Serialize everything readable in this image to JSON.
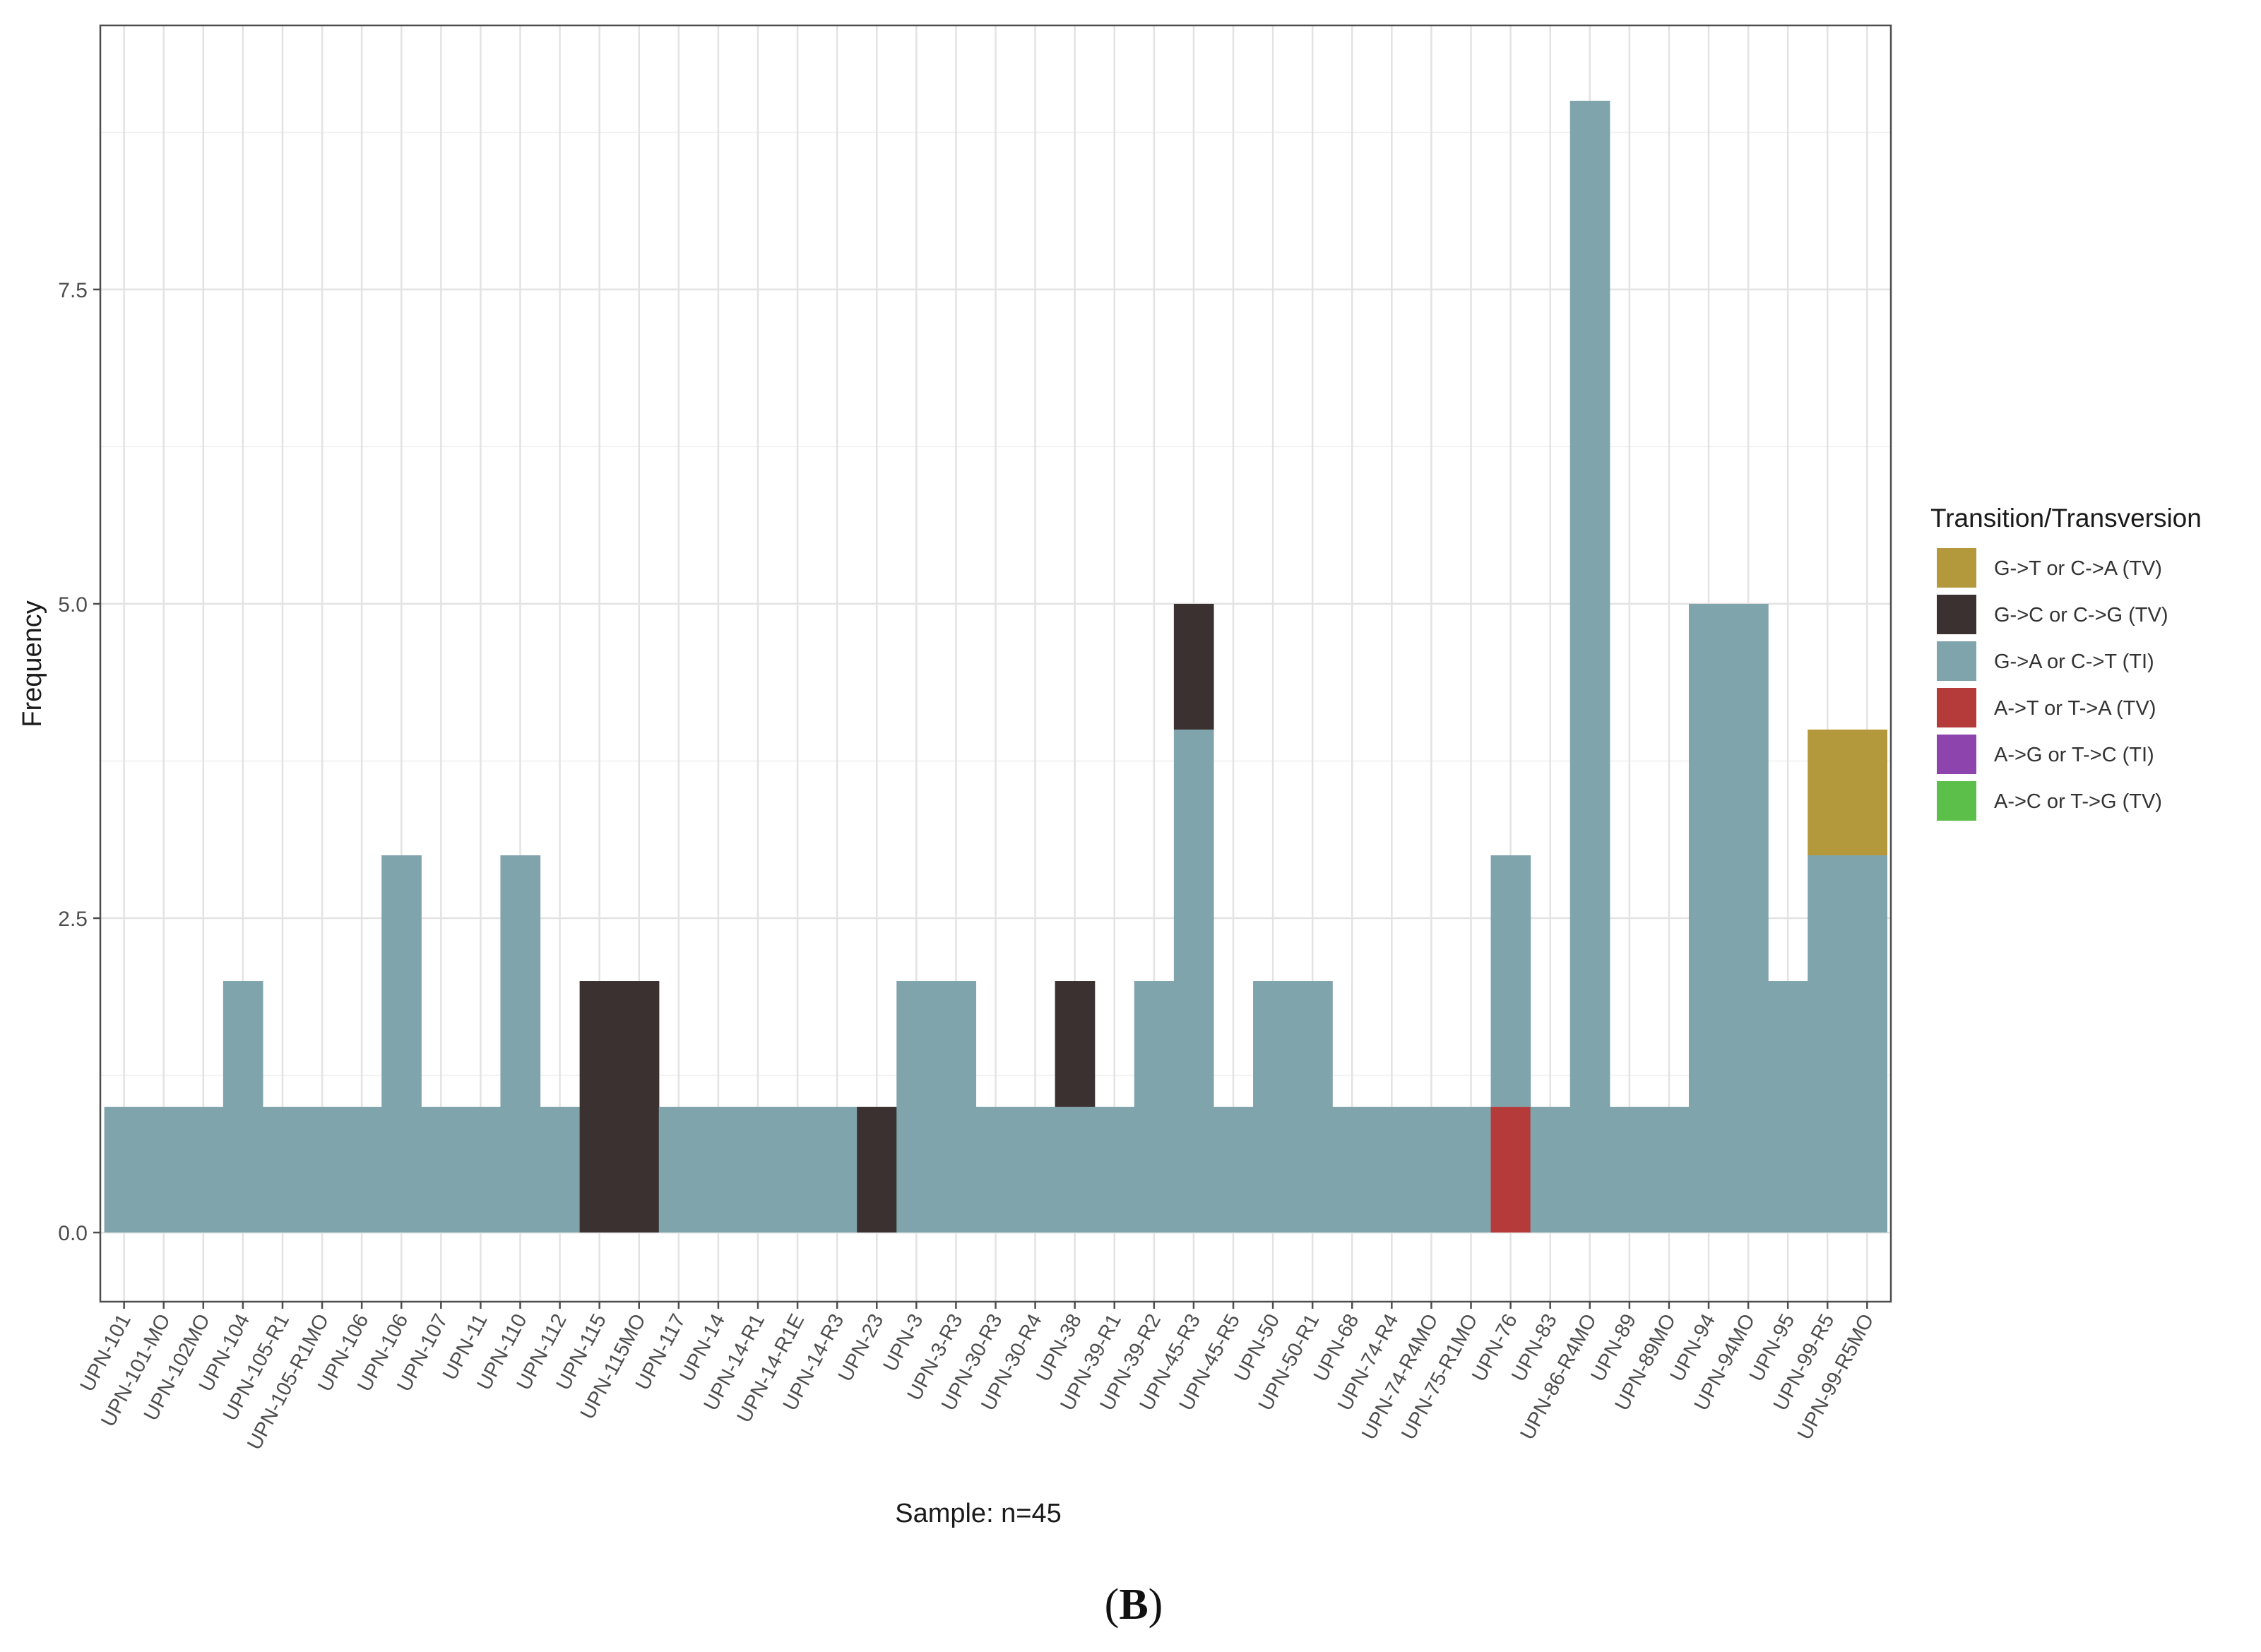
{
  "panel_label": {
    "open": "(",
    "letter": "B",
    "close": ")"
  },
  "chart_data": {
    "type": "bar",
    "stacked": true,
    "xlabel": "Sample: n=45",
    "ylabel": "Frequency",
    "ylim": [
      -0.55,
      9.6
    ],
    "yticks": [
      0.0,
      2.5,
      5.0,
      7.5
    ],
    "ytick_labels": [
      "0.0",
      "2.5",
      "5.0",
      "7.5"
    ],
    "grid": true,
    "legend_position": "right",
    "legend_title": "Transition/Transversion",
    "categories": [
      "UPN-101",
      "UPN-101-MO",
      "UPN-102MO",
      "UPN-104",
      "UPN-105-R1",
      "UPN-105-R1MO",
      "UPN-106",
      "UPN-106",
      "UPN-107",
      "UPN-11",
      "UPN-110",
      "UPN-112",
      "UPN-115",
      "UPN-115MO",
      "UPN-117",
      "UPN-14",
      "UPN-14-R1",
      "UPN-14-R1E",
      "UPN-14-R3",
      "UPN-23",
      "UPN-3",
      "UPN-3-R3",
      "UPN-30-R3",
      "UPN-30-R4",
      "UPN-38",
      "UPN-39-R1",
      "UPN-39-R2",
      "UPN-45-R3",
      "UPN-45-R5",
      "UPN-50",
      "UPN-50-R1",
      "UPN-68",
      "UPN-74-R4",
      "UPN-74-R4MO",
      "UPN-75-R1MO",
      "UPN-76",
      "UPN-83",
      "UPN-86-R4MO",
      "UPN-89",
      "UPN-89MO",
      "UPN-94",
      "UPN-94MO",
      "UPN-95",
      "UPN-99-R5",
      "UPN-99-R5MO"
    ],
    "series": [
      {
        "name": "G->T or C->A (TV)",
        "color": "#b3983c",
        "values": [
          0,
          0,
          0,
          0,
          0,
          0,
          0,
          0,
          0,
          0,
          0,
          0,
          0,
          0,
          0,
          0,
          0,
          0,
          0,
          0,
          0,
          0,
          0,
          0,
          0,
          0,
          0,
          0,
          0,
          0,
          0,
          0,
          0,
          0,
          0,
          0,
          0,
          0,
          0,
          0,
          0,
          0,
          0,
          1,
          1
        ]
      },
      {
        "name": "G->C or C->G (TV)",
        "color": "#3b3130",
        "values": [
          0,
          0,
          0,
          0,
          0,
          0,
          0,
          0,
          0,
          0,
          0,
          0,
          2,
          2,
          0,
          0,
          0,
          0,
          0,
          1,
          0,
          0,
          0,
          0,
          1,
          0,
          0,
          1,
          0,
          0,
          0,
          0,
          0,
          0,
          0,
          0,
          0,
          0,
          0,
          0,
          0,
          0,
          0,
          0,
          0
        ]
      },
      {
        "name": "G->A or C->T (TI)",
        "color": "#80a4ac",
        "values": [
          1,
          1,
          1,
          2,
          1,
          1,
          1,
          3,
          1,
          1,
          3,
          1,
          0,
          0,
          1,
          1,
          1,
          1,
          1,
          0,
          2,
          2,
          1,
          1,
          1,
          1,
          2,
          4,
          1,
          2,
          2,
          1,
          1,
          1,
          1,
          2,
          1,
          9,
          1,
          1,
          5,
          5,
          2,
          3,
          3
        ]
      },
      {
        "name": "A->T or T->A (TV)",
        "color": "#b53a3a",
        "values": [
          0,
          0,
          0,
          0,
          0,
          0,
          0,
          0,
          0,
          0,
          0,
          0,
          0,
          0,
          0,
          0,
          0,
          0,
          0,
          0,
          0,
          0,
          0,
          0,
          0,
          0,
          0,
          0,
          0,
          0,
          0,
          0,
          0,
          0,
          0,
          1,
          0,
          0,
          0,
          0,
          0,
          0,
          0,
          0,
          0
        ]
      },
      {
        "name": "A->G or T->C (TI)",
        "color": "#8e44ad",
        "values": [
          0,
          0,
          0,
          0,
          0,
          0,
          0,
          0,
          0,
          0,
          0,
          0,
          0,
          0,
          0,
          0,
          0,
          0,
          0,
          0,
          0,
          0,
          0,
          0,
          0,
          0,
          0,
          0,
          0,
          0,
          0,
          0,
          0,
          0,
          0,
          0,
          0,
          0,
          0,
          0,
          0,
          0,
          0,
          0,
          0
        ]
      },
      {
        "name": "A->C or T->G (TV)",
        "color": "#5cbf4a",
        "values": [
          0,
          0,
          0,
          0,
          0,
          0,
          0,
          0,
          0,
          0,
          0,
          0,
          0,
          0,
          0,
          0,
          0,
          0,
          0,
          0,
          0,
          0,
          0,
          0,
          0,
          0,
          0,
          0,
          0,
          0,
          0,
          0,
          0,
          0,
          0,
          0,
          0,
          0,
          0,
          0,
          0,
          0,
          0,
          0,
          0
        ]
      }
    ]
  }
}
